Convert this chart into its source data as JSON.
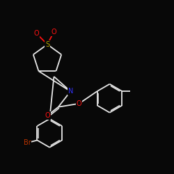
{
  "background_color": "#080808",
  "bond_color": "#e8e8e8",
  "bond_color2": "#c8c8c8",
  "atom_colors": {
    "N": "#3333ff",
    "O": "#ff1111",
    "S": "#bbaa00",
    "Br": "#bb3300"
  },
  "figsize": [
    2.5,
    2.5
  ],
  "dpi": 100
}
